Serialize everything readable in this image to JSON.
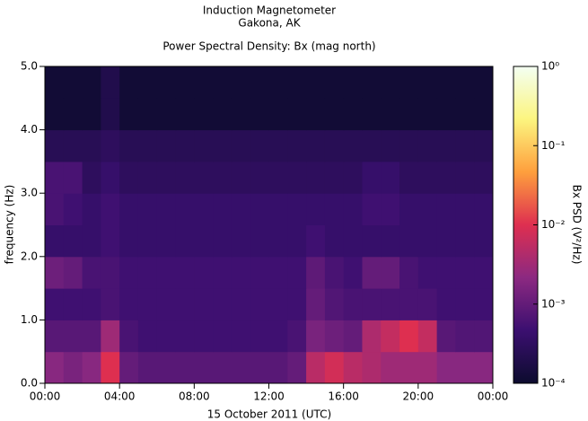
{
  "chart_data": {
    "type": "heatmap",
    "title": "Induction Magnetometer",
    "subtitle": "Gakona, AK",
    "plot_title": "Power Spectral Density: Bx (mag north)",
    "xlabel": "15 October 2011 (UTC)",
    "ylabel": "frequency (Hz)",
    "zlabel": "Bx PSD (V²/Hz)",
    "xlim": [
      0,
      24
    ],
    "xticks": [
      {
        "value": 0,
        "label": "00:00"
      },
      {
        "value": 4,
        "label": "04:00"
      },
      {
        "value": 8,
        "label": "08:00"
      },
      {
        "value": 12,
        "label": "12:00"
      },
      {
        "value": 16,
        "label": "16:00"
      },
      {
        "value": 20,
        "label": "20:00"
      },
      {
        "value": 24,
        "label": "00:00"
      }
    ],
    "ylim": [
      0,
      5
    ],
    "yticks": [
      {
        "value": 0,
        "label": "0.0"
      },
      {
        "value": 1,
        "label": "1.0"
      },
      {
        "value": 2,
        "label": "2.0"
      },
      {
        "value": 3,
        "label": "3.0"
      },
      {
        "value": 4,
        "label": "4.0"
      },
      {
        "value": 5,
        "label": "5.0"
      }
    ],
    "zlim": [
      0.0001,
      1
    ],
    "zlog": true,
    "zticks": [
      {
        "value": 0.0001,
        "label": "10⁻⁴"
      },
      {
        "value": 0.001,
        "label": "10⁻³"
      },
      {
        "value": 0.01,
        "label": "10⁻²"
      },
      {
        "value": 0.1,
        "label": "10⁻¹"
      },
      {
        "value": 1,
        "label": "10⁰"
      }
    ],
    "colormap": [
      "#0c0c2e",
      "#3b0f70",
      "#8c2981",
      "#de2f50",
      "#fe9f3d",
      "#fcf57f",
      "#f3fff3"
    ],
    "xbins": [
      0,
      1,
      2,
      3,
      4,
      5,
      6,
      7,
      8,
      9,
      10,
      11,
      12,
      13,
      14,
      15,
      16,
      17,
      18,
      19,
      20,
      21,
      22,
      23,
      24
    ],
    "ybins": [
      0,
      0.5,
      1,
      1.5,
      2,
      2.5,
      3,
      3.5,
      4,
      4.5,
      5
    ],
    "z": [
      [
        0.002,
        0.0015,
        0.002,
        0.01,
        0.001,
        0.0008,
        0.0008,
        0.0008,
        0.0008,
        0.0008,
        0.0008,
        0.0008,
        0.0008,
        0.001,
        0.005,
        0.008,
        0.005,
        0.004,
        0.003,
        0.003,
        0.003,
        0.002,
        0.002,
        0.002
      ],
      [
        0.0008,
        0.0008,
        0.0008,
        0.003,
        0.0006,
        0.0005,
        0.0005,
        0.0005,
        0.0005,
        0.0005,
        0.0005,
        0.0005,
        0.0005,
        0.0006,
        0.0015,
        0.0012,
        0.001,
        0.004,
        0.006,
        0.01,
        0.006,
        0.0008,
        0.0007,
        0.0007
      ],
      [
        0.0005,
        0.0005,
        0.0005,
        0.0006,
        0.0005,
        0.0005,
        0.0005,
        0.0005,
        0.0005,
        0.0005,
        0.0005,
        0.0005,
        0.0005,
        0.0005,
        0.001,
        0.0007,
        0.0006,
        0.0006,
        0.0006,
        0.0006,
        0.0006,
        0.0005,
        0.0005,
        0.0005
      ],
      [
        0.0012,
        0.001,
        0.0006,
        0.0006,
        0.0005,
        0.0005,
        0.0005,
        0.0005,
        0.0005,
        0.0005,
        0.0005,
        0.0005,
        0.0005,
        0.0005,
        0.0009,
        0.0006,
        0.0005,
        0.001,
        0.001,
        0.0006,
        0.0005,
        0.0005,
        0.0005,
        0.0005
      ],
      [
        0.0004,
        0.0004,
        0.0004,
        0.0005,
        0.0004,
        0.0004,
        0.0004,
        0.0004,
        0.0004,
        0.0004,
        0.0004,
        0.0004,
        0.0004,
        0.0004,
        0.0005,
        0.0004,
        0.0004,
        0.0004,
        0.0004,
        0.0004,
        0.0004,
        0.0004,
        0.0004,
        0.0004
      ],
      [
        0.0006,
        0.0005,
        0.0004,
        0.0005,
        0.0004,
        0.0004,
        0.0004,
        0.0004,
        0.0004,
        0.0004,
        0.0004,
        0.0004,
        0.0004,
        0.0004,
        0.0004,
        0.0004,
        0.0004,
        0.0005,
        0.0005,
        0.0004,
        0.0004,
        0.0004,
        0.0004,
        0.0004
      ],
      [
        0.0006,
        0.0006,
        0.0003,
        0.0004,
        0.0003,
        0.0003,
        0.0003,
        0.0003,
        0.0003,
        0.0003,
        0.0003,
        0.0003,
        0.0003,
        0.0003,
        0.0003,
        0.0003,
        0.0003,
        0.0004,
        0.0004,
        0.0003,
        0.0003,
        0.0003,
        0.0003,
        0.0003
      ],
      [
        0.00025,
        0.00025,
        0.00025,
        0.0003,
        0.00025,
        0.00025,
        0.00025,
        0.00025,
        0.00025,
        0.00025,
        0.00025,
        0.00025,
        0.00025,
        0.00025,
        0.00025,
        0.00025,
        0.00025,
        0.00025,
        0.00025,
        0.00025,
        0.00025,
        0.00025,
        0.00025,
        0.00025
      ],
      [
        0.00012,
        0.00012,
        0.00012,
        0.0002,
        0.00012,
        0.00012,
        0.00012,
        0.00012,
        0.00012,
        0.00012,
        0.00012,
        0.00012,
        0.00012,
        0.00012,
        0.00012,
        0.00012,
        0.00012,
        0.00012,
        0.00012,
        0.00012,
        0.00012,
        0.00012,
        0.00012,
        0.00012
      ],
      [
        0.00012,
        0.00012,
        0.00012,
        0.0002,
        0.00012,
        0.00012,
        0.00012,
        0.00012,
        0.00012,
        0.00012,
        0.00012,
        0.00012,
        0.00012,
        0.00012,
        0.00012,
        0.00012,
        0.00012,
        0.00012,
        0.00012,
        0.00012,
        0.00012,
        0.00012,
        0.00012,
        0.00012
      ]
    ]
  }
}
